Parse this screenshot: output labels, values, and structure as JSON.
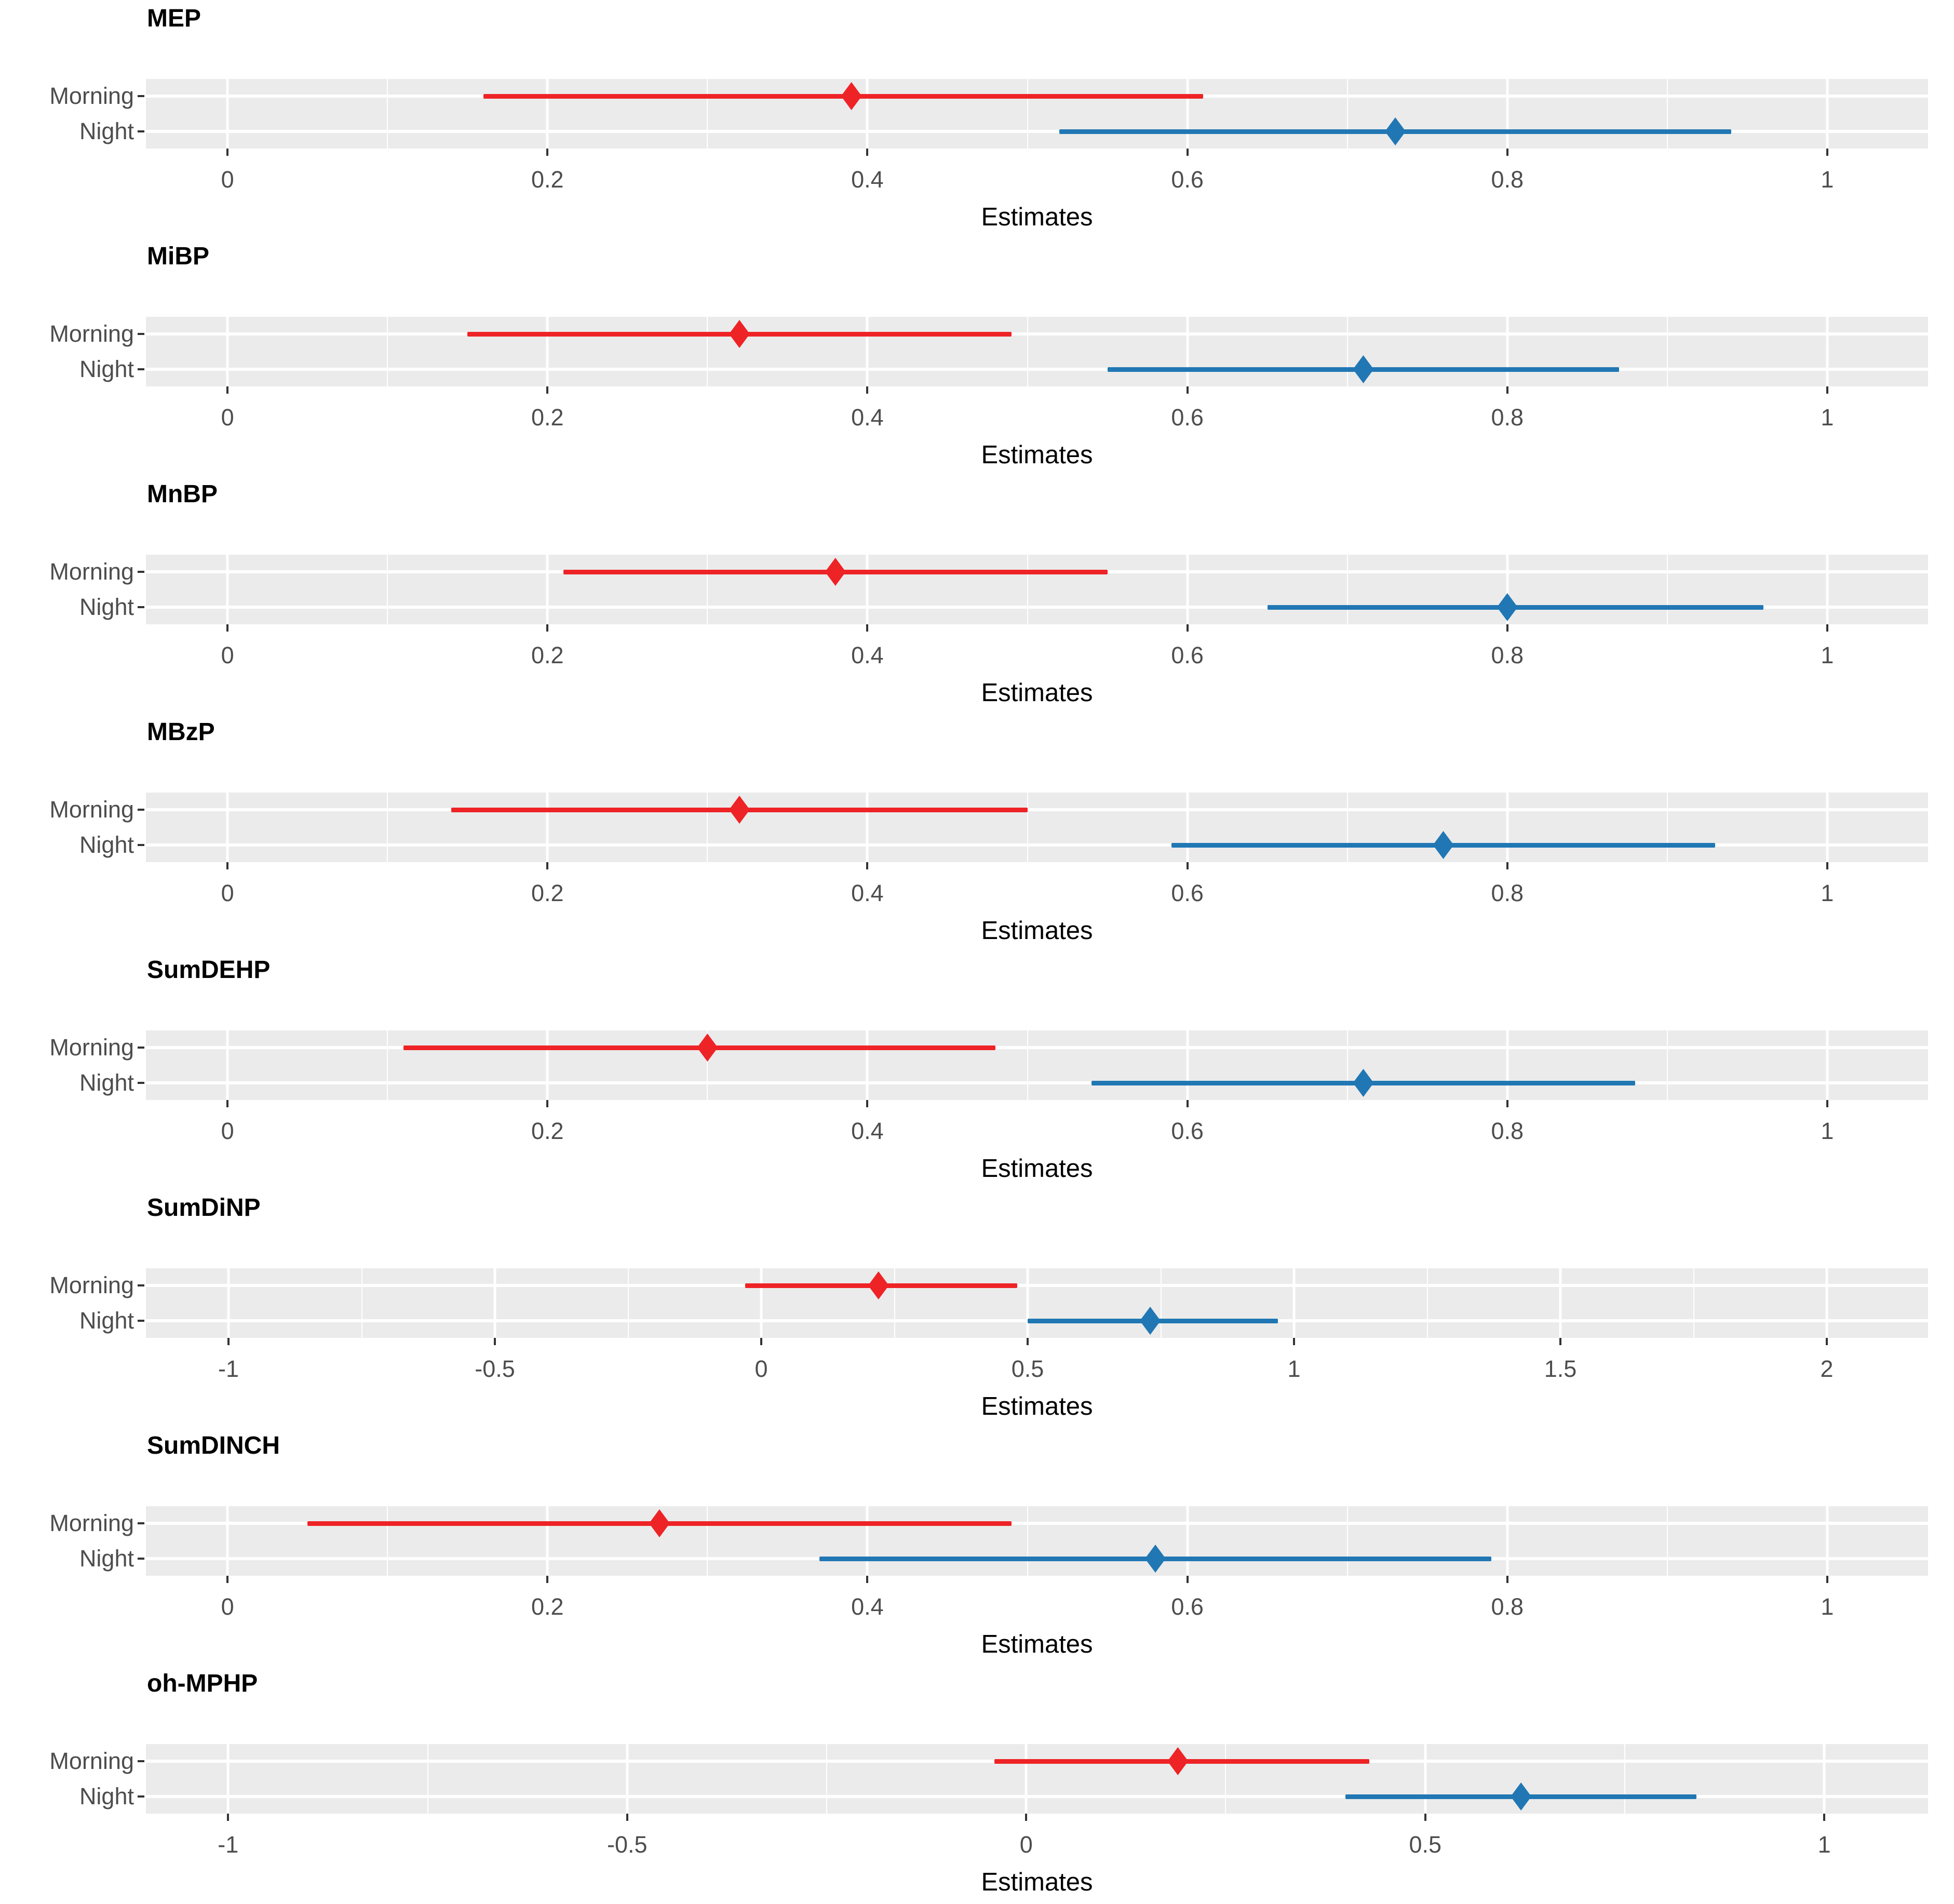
{
  "figure": {
    "kind": "forest-plot-grid",
    "xlabel": "Estimates",
    "colors": {
      "morning": "#EE2326",
      "night": "#2077B4",
      "panel_background": "#EBEBEB",
      "gridline": "#FFFFFF",
      "axis_text": "#4D4D4D",
      "tick_mark": "#333333",
      "title_text": "#000000"
    }
  },
  "chart_data": [
    {
      "type": "scatter",
      "title": "MEP",
      "xlabel": "Estimates",
      "ylabel": "",
      "categories": [
        "Morning",
        "Night"
      ],
      "xlim": [
        -0.051,
        1.063
      ],
      "x_ticks": [
        0,
        0.2,
        0.4,
        0.6,
        0.8,
        1
      ],
      "x_tick_labels": [
        "0",
        "0.2",
        "0.4",
        "0.6",
        "0.8",
        "1"
      ],
      "x_minor_ticks": [
        0.1,
        0.3,
        0.5,
        0.7,
        0.9
      ],
      "grid": true,
      "legend": "none",
      "series": [
        {
          "name": "Morning",
          "color": "#EE2326",
          "estimate": 0.39,
          "ci_low": 0.16,
          "ci_high": 0.61
        },
        {
          "name": "Night",
          "color": "#2077B4",
          "estimate": 0.73,
          "ci_low": 0.52,
          "ci_high": 0.94
        }
      ]
    },
    {
      "type": "scatter",
      "title": "MiBP",
      "xlabel": "Estimates",
      "ylabel": "",
      "categories": [
        "Morning",
        "Night"
      ],
      "xlim": [
        -0.051,
        1.063
      ],
      "x_ticks": [
        0,
        0.2,
        0.4,
        0.6,
        0.8,
        1
      ],
      "x_tick_labels": [
        "0",
        "0.2",
        "0.4",
        "0.6",
        "0.8",
        "1"
      ],
      "x_minor_ticks": [
        0.1,
        0.3,
        0.5,
        0.7,
        0.9
      ],
      "grid": true,
      "legend": "none",
      "series": [
        {
          "name": "Morning",
          "color": "#EE2326",
          "estimate": 0.32,
          "ci_low": 0.15,
          "ci_high": 0.49
        },
        {
          "name": "Night",
          "color": "#2077B4",
          "estimate": 0.71,
          "ci_low": 0.55,
          "ci_high": 0.87
        }
      ]
    },
    {
      "type": "scatter",
      "title": "MnBP",
      "xlabel": "Estimates",
      "ylabel": "",
      "categories": [
        "Morning",
        "Night"
      ],
      "xlim": [
        -0.051,
        1.063
      ],
      "x_ticks": [
        0,
        0.2,
        0.4,
        0.6,
        0.8,
        1
      ],
      "x_tick_labels": [
        "0",
        "0.2",
        "0.4",
        "0.6",
        "0.8",
        "1"
      ],
      "x_minor_ticks": [
        0.1,
        0.3,
        0.5,
        0.7,
        0.9
      ],
      "grid": true,
      "legend": "none",
      "series": [
        {
          "name": "Morning",
          "color": "#EE2326",
          "estimate": 0.38,
          "ci_low": 0.21,
          "ci_high": 0.55
        },
        {
          "name": "Night",
          "color": "#2077B4",
          "estimate": 0.8,
          "ci_low": 0.65,
          "ci_high": 0.96
        }
      ]
    },
    {
      "type": "scatter",
      "title": "MBzP",
      "xlabel": "Estimates",
      "ylabel": "",
      "categories": [
        "Morning",
        "Night"
      ],
      "xlim": [
        -0.051,
        1.063
      ],
      "x_ticks": [
        0,
        0.2,
        0.4,
        0.6,
        0.8,
        1
      ],
      "x_tick_labels": [
        "0",
        "0.2",
        "0.4",
        "0.6",
        "0.8",
        "1"
      ],
      "x_minor_ticks": [
        0.1,
        0.3,
        0.5,
        0.7,
        0.9
      ],
      "grid": true,
      "legend": "none",
      "series": [
        {
          "name": "Morning",
          "color": "#EE2326",
          "estimate": 0.32,
          "ci_low": 0.14,
          "ci_high": 0.5
        },
        {
          "name": "Night",
          "color": "#2077B4",
          "estimate": 0.76,
          "ci_low": 0.59,
          "ci_high": 0.93
        }
      ]
    },
    {
      "type": "scatter",
      "title": "SumDEHP",
      "xlabel": "Estimates",
      "ylabel": "",
      "categories": [
        "Morning",
        "Night"
      ],
      "xlim": [
        -0.051,
        1.063
      ],
      "x_ticks": [
        0,
        0.2,
        0.4,
        0.6,
        0.8,
        1
      ],
      "x_tick_labels": [
        "0",
        "0.2",
        "0.4",
        "0.6",
        "0.8",
        "1"
      ],
      "x_minor_ticks": [
        0.1,
        0.3,
        0.5,
        0.7,
        0.9
      ],
      "grid": true,
      "legend": "none",
      "series": [
        {
          "name": "Morning",
          "color": "#EE2326",
          "estimate": 0.3,
          "ci_low": 0.11,
          "ci_high": 0.48
        },
        {
          "name": "Night",
          "color": "#2077B4",
          "estimate": 0.71,
          "ci_low": 0.54,
          "ci_high": 0.88
        }
      ]
    },
    {
      "type": "scatter",
      "title": "SumDiNP",
      "xlabel": "Estimates",
      "ylabel": "",
      "categories": [
        "Morning",
        "Night"
      ],
      "xlim": [
        -1.155,
        2.19
      ],
      "x_ticks": [
        -1,
        -0.5,
        0,
        0.5,
        1,
        1.5,
        2
      ],
      "x_tick_labels": [
        "-1",
        "-0.5",
        "0",
        "0.5",
        "1",
        "1.5",
        "2"
      ],
      "x_minor_ticks": [
        -0.75,
        -0.25,
        0.25,
        0.75,
        1.25,
        1.75
      ],
      "grid": true,
      "legend": "none",
      "series": [
        {
          "name": "Morning",
          "color": "#EE2326",
          "estimate": 0.22,
          "ci_low": -0.03,
          "ci_high": 0.48
        },
        {
          "name": "Night",
          "color": "#2077B4",
          "estimate": 0.73,
          "ci_low": 0.5,
          "ci_high": 0.97
        }
      ]
    },
    {
      "type": "scatter",
      "title": "SumDINCH",
      "xlabel": "Estimates",
      "ylabel": "",
      "categories": [
        "Morning",
        "Night"
      ],
      "xlim": [
        -0.051,
        1.063
      ],
      "x_ticks": [
        0,
        0.2,
        0.4,
        0.6,
        0.8,
        1
      ],
      "x_tick_labels": [
        "0",
        "0.2",
        "0.4",
        "0.6",
        "0.8",
        "1"
      ],
      "x_minor_ticks": [
        0.1,
        0.3,
        0.5,
        0.7,
        0.9
      ],
      "grid": true,
      "legend": "none",
      "series": [
        {
          "name": "Morning",
          "color": "#EE2326",
          "estimate": 0.27,
          "ci_low": 0.05,
          "ci_high": 0.49
        },
        {
          "name": "Night",
          "color": "#2077B4",
          "estimate": 0.58,
          "ci_low": 0.37,
          "ci_high": 0.79
        }
      ]
    },
    {
      "type": "scatter",
      "title": "oh-MPHP",
      "xlabel": "Estimates",
      "ylabel": "",
      "categories": [
        "Morning",
        "Night"
      ],
      "xlim": [
        -1.103,
        1.13
      ],
      "x_ticks": [
        -1,
        -0.5,
        0,
        0.5,
        1
      ],
      "x_tick_labels": [
        "-1",
        "-0.5",
        "0",
        "0.5",
        "1"
      ],
      "x_minor_ticks": [
        -0.75,
        -0.25,
        0.25,
        0.75
      ],
      "grid": true,
      "legend": "none",
      "series": [
        {
          "name": "Morning",
          "color": "#EE2326",
          "estimate": 0.19,
          "ci_low": -0.04,
          "ci_high": 0.43
        },
        {
          "name": "Night",
          "color": "#2077B4",
          "estimate": 0.62,
          "ci_low": 0.4,
          "ci_high": 0.84
        }
      ]
    }
  ]
}
